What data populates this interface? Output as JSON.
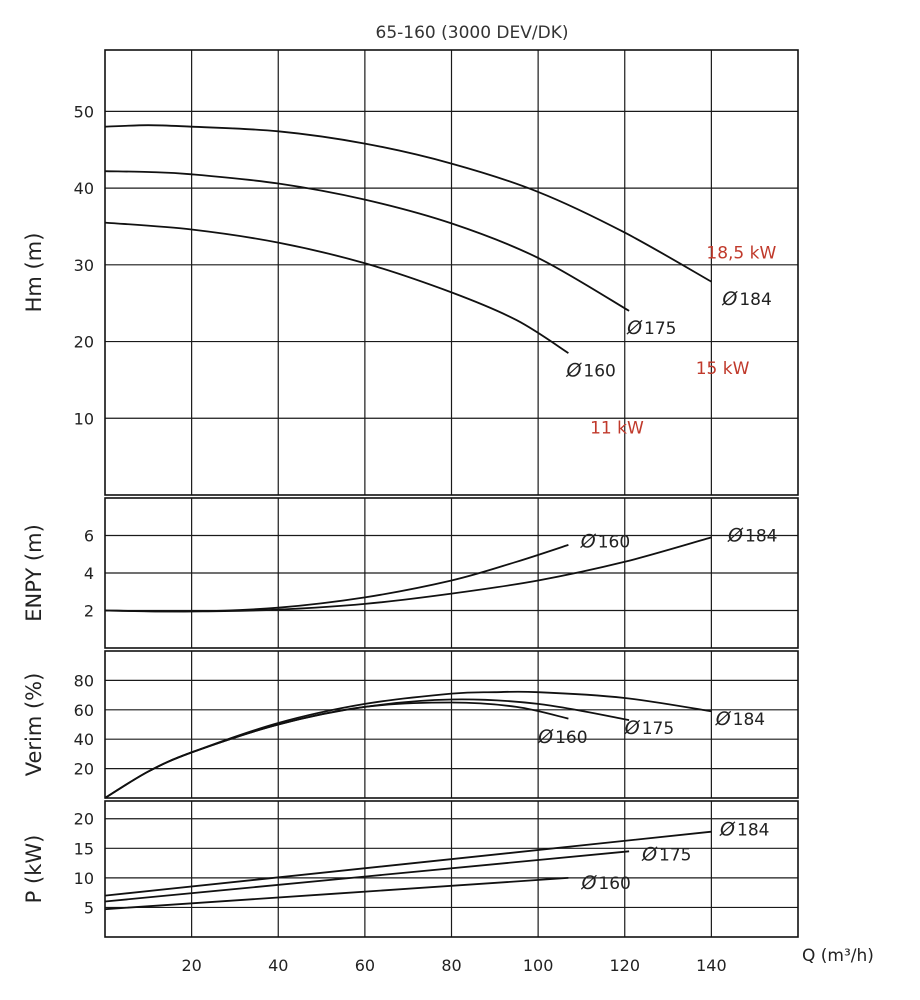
{
  "chart_data": {
    "title": "65-160 (3000 DEV/DK)",
    "xlabel": "Q (m³/h)",
    "x_ticks": [
      "20",
      "40",
      "60",
      "80",
      "100",
      "120",
      "140"
    ],
    "xlim": [
      0,
      160
    ],
    "diameter_symbol": "Ø",
    "colors": {
      "curve": "#111111",
      "grid": "#1a1a1a",
      "power_rating": "#c0392b"
    },
    "panels": [
      {
        "key": "head",
        "type": "line",
        "ylabel": "Hm (m)",
        "ylim": [
          0,
          58
        ],
        "y_ticks": [
          "10",
          "20",
          "30",
          "40",
          "50"
        ],
        "series": [
          {
            "name": "184",
            "x": [
              0,
              10,
              20,
              40,
              60,
              80,
              100,
              120,
              140
            ],
            "y": [
              48,
              48.2,
              48,
              47.4,
              45.8,
              43.2,
              39.5,
              34.2,
              27.8
            ]
          },
          {
            "name": "175",
            "x": [
              0,
              10,
              20,
              40,
              60,
              80,
              100,
              121
            ],
            "y": [
              42.2,
              42.1,
              41.8,
              40.6,
              38.5,
              35.4,
              30.9,
              24
            ]
          },
          {
            "name": "160",
            "x": [
              0,
              20,
              40,
              60,
              80,
              95,
              107
            ],
            "y": [
              35.5,
              34.6,
              32.9,
              30.2,
              26.4,
              22.8,
              18.5
            ]
          }
        ],
        "series_labels": [
          "184",
          "175",
          "160"
        ],
        "power_labels": [
          "18,5 kW",
          "15 kW",
          "11 kW"
        ]
      },
      {
        "key": "npsh",
        "type": "line",
        "ylabel": "ENPY (m)",
        "ylim": [
          0,
          8
        ],
        "y_ticks": [
          "2",
          "4",
          "6"
        ],
        "series": [
          {
            "name": "160",
            "x": [
              0,
              20,
              40,
              60,
              80,
              95,
              107
            ],
            "y": [
              2,
              1.95,
              2.15,
              2.7,
              3.6,
              4.6,
              5.5
            ]
          },
          {
            "name": "184",
            "x": [
              0,
              20,
              40,
              60,
              80,
              100,
              120,
              140
            ],
            "y": [
              2,
              1.95,
              2.05,
              2.35,
              2.9,
              3.6,
              4.6,
              5.9
            ]
          }
        ],
        "series_labels": [
          "160",
          "184"
        ]
      },
      {
        "key": "efficiency",
        "type": "line",
        "ylabel": "Verim (%)",
        "ylim": [
          0,
          100
        ],
        "y_ticks": [
          "20",
          "40",
          "60",
          "80"
        ],
        "series": [
          {
            "name": "160",
            "x": [
              0,
              10,
              20,
              40,
              60,
              80,
              95,
              107
            ],
            "y": [
              0,
              18,
              31,
              50,
              62,
              65,
              62,
              54
            ]
          },
          {
            "name": "175",
            "x": [
              0,
              10,
              20,
              40,
              60,
              80,
              100,
              121
            ],
            "y": [
              0,
              18,
              31,
              50,
              62,
              67,
              64,
              53
            ]
          },
          {
            "name": "184",
            "x": [
              0,
              10,
              20,
              40,
              60,
              80,
              90,
              100,
              120,
              140
            ],
            "y": [
              0,
              18,
              31,
              51,
              64,
              71,
              72,
              72,
              68,
              59
            ]
          }
        ],
        "series_labels": [
          "160",
          "175",
          "184"
        ]
      },
      {
        "key": "power",
        "type": "line",
        "ylabel": "P (kW)",
        "ylim": [
          0,
          23
        ],
        "y_ticks": [
          "5",
          "10",
          "15",
          "20"
        ],
        "series": [
          {
            "name": "184",
            "x": [
              0,
              140
            ],
            "y": [
              7,
              17.8
            ]
          },
          {
            "name": "175",
            "x": [
              0,
              121
            ],
            "y": [
              6,
              14.5
            ]
          },
          {
            "name": "160",
            "x": [
              0,
              107
            ],
            "y": [
              4.7,
              10
            ]
          }
        ],
        "series_labels": [
          "184",
          "175",
          "160"
        ]
      }
    ]
  }
}
